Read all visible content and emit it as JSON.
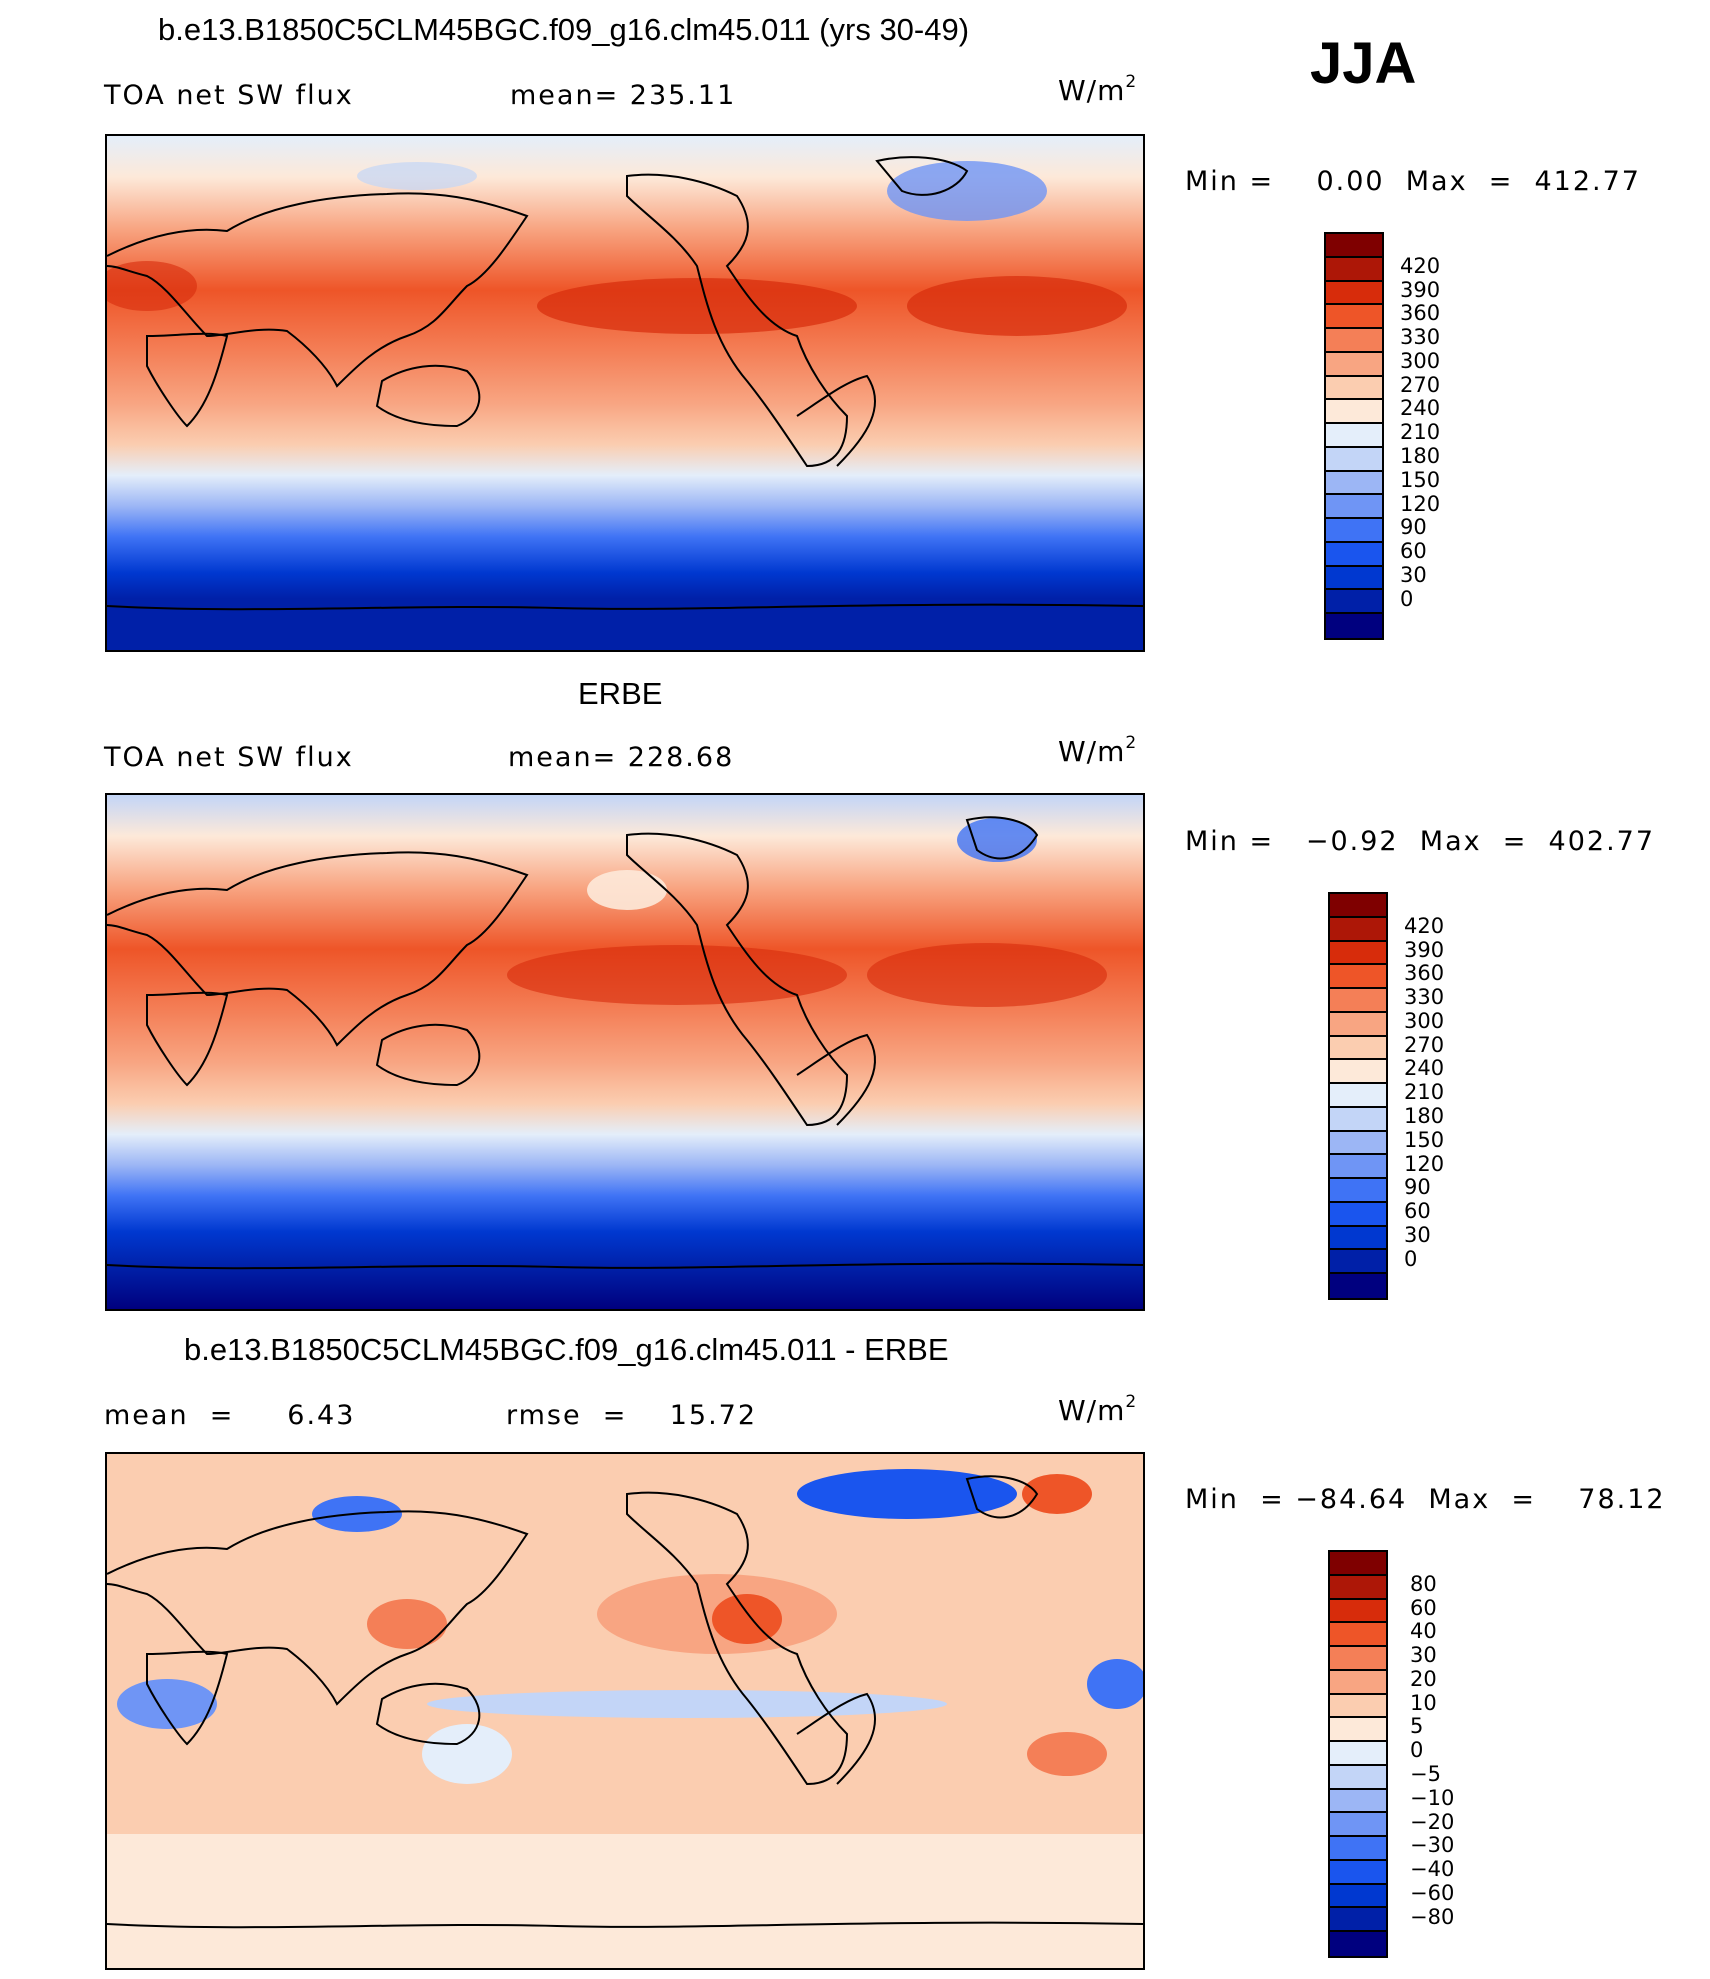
{
  "season": "JJA",
  "colors": {
    "scale_abs": [
      "#00007f",
      "#0020a8",
      "#0038d0",
      "#1a55ee",
      "#3f73f5",
      "#6f95f5",
      "#9cb6f5",
      "#c3d5f7",
      "#e4eefa",
      "#fde9d9",
      "#fbcdb0",
      "#f8a582",
      "#f47f57",
      "#ee5528",
      "#d72c0b",
      "#ad1707",
      "#7f0000"
    ],
    "scale_diff": [
      "#00007f",
      "#0020a8",
      "#0038d0",
      "#1a55ee",
      "#3f73f5",
      "#6f95f5",
      "#9cb6f5",
      "#c3d5f7",
      "#e4eefa",
      "#fde9d9",
      "#fbcdb0",
      "#f8a582",
      "#f47f57",
      "#ee5528",
      "#d72c0b",
      "#ad1707",
      "#7f0000"
    ]
  },
  "panels": [
    {
      "id": "model",
      "title": "b.e13.B1850C5CLM45BGC.f09_g16.clm45.011 (yrs 30-49)",
      "left_label": "TOA net SW flux",
      "stat_label": "mean= 235.11",
      "units_base": "W/m",
      "units_exp": "2",
      "minmax_label": "Min =    0.00  Max  =  412.77",
      "colorbar_ticks": [
        "420",
        "390",
        "360",
        "330",
        "300",
        "270",
        "240",
        "210",
        "180",
        "150",
        "120",
        "90",
        "60",
        "30",
        "0"
      ]
    },
    {
      "id": "obs",
      "title": "ERBE",
      "left_label": "TOA net SW flux",
      "stat_label": "mean= 228.68",
      "units_base": "W/m",
      "units_exp": "2",
      "minmax_label": "Min =   −0.92  Max  =  402.77",
      "colorbar_ticks": [
        "420",
        "390",
        "360",
        "330",
        "300",
        "270",
        "240",
        "210",
        "180",
        "150",
        "120",
        "90",
        "60",
        "30",
        "0"
      ]
    },
    {
      "id": "diff",
      "title": "b.e13.B1850C5CLM45BGC.f09_g16.clm45.011 - ERBE",
      "left_label": "mean  =     6.43",
      "stat_label": "rmse  =    15.72",
      "units_base": "W/m",
      "units_exp": "2",
      "minmax_label": "Min  = −84.64  Max  =    78.12",
      "colorbar_ticks": [
        "80",
        "60",
        "40",
        "30",
        "20",
        "10",
        "5",
        "0",
        "−5",
        "−10",
        "−20",
        "−30",
        "−40",
        "−60",
        "−80"
      ]
    }
  ]
}
